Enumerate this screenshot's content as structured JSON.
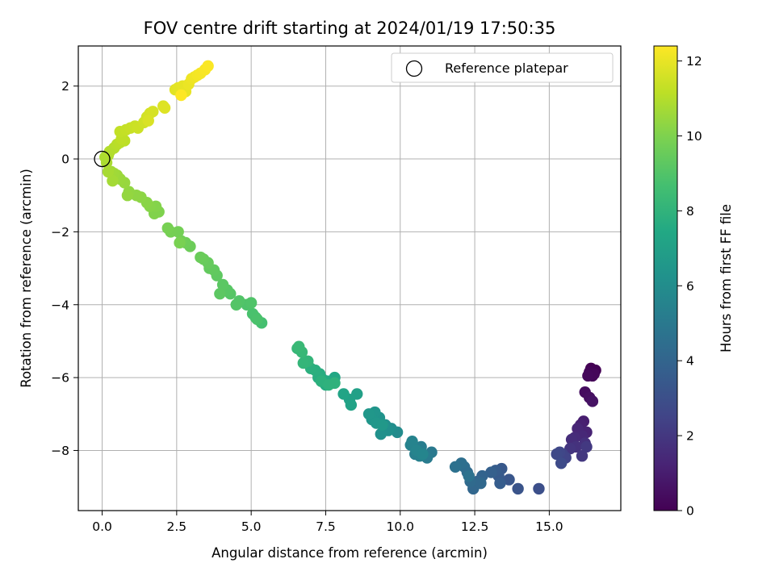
{
  "chart_data": {
    "type": "scatter",
    "title": "FOV centre drift starting at 2024/01/19 17:50:35",
    "xlabel": "Angular distance from reference (arcmin)",
    "ylabel": "Rotation from reference (arcmin)",
    "xlim": [
      -0.8,
      17.4
    ],
    "ylim": [
      -9.65,
      3.1
    ],
    "xticks": [
      "0.0",
      "2.5",
      "5.0",
      "7.5",
      "10.0",
      "12.5",
      "15.0"
    ],
    "xtick_values": [
      0,
      2.5,
      5,
      7.5,
      10,
      12.5,
      15
    ],
    "yticks": [
      "2",
      "0",
      "−2",
      "−4",
      "−6",
      "−8"
    ],
    "ytick_values": [
      2,
      0,
      -2,
      -4,
      -6,
      -8
    ],
    "grid": true,
    "legend": {
      "position": "top-right",
      "entries": [
        "Reference platepar"
      ]
    },
    "reference_point": {
      "x": 0,
      "y": 0
    },
    "colorbar": {
      "label": "Hours from first FF file",
      "range": [
        0,
        12.4
      ],
      "ticks": [
        "0",
        "2",
        "4",
        "6",
        "8",
        "10",
        "12"
      ],
      "tick_values": [
        0,
        2,
        4,
        6,
        8,
        10,
        12
      ],
      "colormap": "viridis"
    },
    "points": [
      [
        16.4,
        -5.75,
        0.0
      ],
      [
        16.55,
        -5.8,
        0.05
      ],
      [
        16.45,
        -5.95,
        0.1
      ],
      [
        16.35,
        -5.85,
        0.15
      ],
      [
        16.5,
        -5.9,
        0.2
      ],
      [
        16.3,
        -5.95,
        0.25
      ],
      [
        16.2,
        -6.4,
        0.4
      ],
      [
        16.35,
        -6.55,
        0.5
      ],
      [
        16.45,
        -6.65,
        0.6
      ],
      [
        16.15,
        -7.2,
        1.0
      ],
      [
        16.05,
        -7.3,
        1.1
      ],
      [
        16.25,
        -7.5,
        1.2
      ],
      [
        15.95,
        -7.4,
        1.3
      ],
      [
        16.1,
        -7.6,
        1.4
      ],
      [
        15.85,
        -7.65,
        1.5
      ],
      [
        15.75,
        -7.7,
        1.6
      ],
      [
        16.2,
        -7.8,
        1.7
      ],
      [
        15.9,
        -7.9,
        1.8
      ],
      [
        15.7,
        -7.95,
        1.9
      ],
      [
        16.1,
        -8.15,
        2.0
      ],
      [
        16.25,
        -7.9,
        2.05
      ],
      [
        15.45,
        -8.1,
        2.4
      ],
      [
        15.55,
        -8.2,
        2.5
      ],
      [
        15.35,
        -8.05,
        2.6
      ],
      [
        15.25,
        -8.1,
        2.7
      ],
      [
        15.4,
        -8.35,
        2.8
      ],
      [
        14.65,
        -9.05,
        3.0
      ],
      [
        13.95,
        -9.05,
        3.2
      ],
      [
        13.65,
        -8.8,
        3.3
      ],
      [
        13.4,
        -8.5,
        3.4
      ],
      [
        13.3,
        -8.7,
        3.5
      ],
      [
        13.2,
        -8.55,
        3.6
      ],
      [
        13.35,
        -8.9,
        3.65
      ],
      [
        13.05,
        -8.6,
        3.75
      ],
      [
        12.75,
        -8.7,
        3.9
      ],
      [
        12.6,
        -8.85,
        4.0
      ],
      [
        12.45,
        -9.05,
        4.1
      ],
      [
        12.7,
        -8.9,
        4.15
      ],
      [
        12.35,
        -8.85,
        4.25
      ],
      [
        12.25,
        -8.6,
        4.3
      ],
      [
        12.15,
        -8.45,
        4.4
      ],
      [
        12.05,
        -8.35,
        4.5
      ],
      [
        11.85,
        -8.45,
        4.6
      ],
      [
        12.3,
        -8.7,
        4.65
      ],
      [
        11.05,
        -8.05,
        5.0
      ],
      [
        10.9,
        -8.2,
        5.1
      ],
      [
        10.7,
        -7.9,
        5.2
      ],
      [
        10.5,
        -8.1,
        5.3
      ],
      [
        10.65,
        -8.15,
        5.35
      ],
      [
        10.35,
        -7.85,
        5.45
      ],
      [
        10.4,
        -7.75,
        5.5
      ],
      [
        10.55,
        -8.0,
        5.55
      ],
      [
        10.75,
        -8.1,
        5.6
      ],
      [
        9.9,
        -7.5,
        5.9
      ],
      [
        9.7,
        -7.4,
        6.0
      ],
      [
        9.5,
        -7.3,
        6.1
      ],
      [
        9.6,
        -7.45,
        6.15
      ],
      [
        9.35,
        -7.55,
        6.2
      ],
      [
        9.3,
        -7.1,
        6.3
      ],
      [
        9.15,
        -6.95,
        6.4
      ],
      [
        9.05,
        -7.15,
        6.45
      ],
      [
        9.2,
        -7.25,
        6.5
      ],
      [
        8.95,
        -7.0,
        6.55
      ],
      [
        9.4,
        -7.3,
        6.6
      ],
      [
        8.55,
        -6.45,
        7.0
      ],
      [
        8.3,
        -6.6,
        7.05
      ],
      [
        8.35,
        -6.75,
        7.1
      ],
      [
        8.1,
        -6.45,
        7.2
      ],
      [
        7.8,
        -6.0,
        7.4
      ],
      [
        7.7,
        -6.15,
        7.45
      ],
      [
        7.55,
        -6.1,
        7.5
      ],
      [
        7.4,
        -6.05,
        7.55
      ],
      [
        7.5,
        -6.2,
        7.6
      ],
      [
        7.3,
        -5.9,
        7.65
      ],
      [
        7.25,
        -6.0,
        7.7
      ],
      [
        7.15,
        -5.8,
        7.75
      ],
      [
        7.0,
        -5.75,
        7.8
      ],
      [
        7.35,
        -6.1,
        7.85
      ],
      [
        7.6,
        -6.2,
        7.9
      ],
      [
        7.8,
        -6.15,
        7.95
      ],
      [
        6.9,
        -5.55,
        8.1
      ],
      [
        6.75,
        -5.6,
        8.15
      ],
      [
        6.55,
        -5.2,
        8.2
      ],
      [
        6.7,
        -5.3,
        8.25
      ],
      [
        6.6,
        -5.15,
        8.3
      ],
      [
        5.35,
        -4.5,
        8.7
      ],
      [
        5.15,
        -4.35,
        8.75
      ],
      [
        5.05,
        -4.25,
        8.8
      ],
      [
        5.2,
        -4.4,
        8.85
      ],
      [
        4.85,
        -4.0,
        8.9
      ],
      [
        5.0,
        -3.95,
        8.95
      ],
      [
        4.6,
        -3.9,
        9.0
      ],
      [
        4.5,
        -4.0,
        9.05
      ],
      [
        4.3,
        -3.7,
        9.1
      ],
      [
        4.2,
        -3.6,
        9.15
      ],
      [
        4.05,
        -3.45,
        9.2
      ],
      [
        3.95,
        -3.7,
        9.25
      ],
      [
        3.85,
        -3.2,
        9.3
      ],
      [
        3.75,
        -3.05,
        9.35
      ],
      [
        3.6,
        -3.0,
        9.4
      ],
      [
        3.55,
        -2.85,
        9.45
      ],
      [
        3.4,
        -2.75,
        9.5
      ],
      [
        3.3,
        -2.7,
        9.55
      ],
      [
        2.95,
        -2.4,
        9.6
      ],
      [
        2.8,
        -2.3,
        9.65
      ],
      [
        2.65,
        -2.25,
        9.7
      ],
      [
        2.55,
        -2.0,
        9.75
      ],
      [
        2.3,
        -2.0,
        9.8
      ],
      [
        2.2,
        -1.9,
        9.85
      ],
      [
        2.6,
        -2.3,
        9.9
      ],
      [
        1.9,
        -1.45,
        10.0
      ],
      [
        1.75,
        -1.5,
        10.05
      ],
      [
        1.8,
        -1.3,
        10.1
      ],
      [
        1.6,
        -1.3,
        10.15
      ],
      [
        1.5,
        -1.2,
        10.2
      ],
      [
        1.3,
        -1.05,
        10.25
      ],
      [
        1.15,
        -1.0,
        10.3
      ],
      [
        0.9,
        -0.9,
        10.35
      ],
      [
        0.85,
        -1.0,
        10.4
      ],
      [
        0.75,
        -0.65,
        10.45
      ],
      [
        0.6,
        -0.55,
        10.5
      ],
      [
        0.5,
        -0.45,
        10.55
      ],
      [
        0.4,
        -0.4,
        10.6
      ],
      [
        0.3,
        -0.35,
        10.65
      ],
      [
        0.35,
        -0.6,
        10.7
      ],
      [
        0.2,
        -0.35,
        10.75
      ],
      [
        0.15,
        -0.1,
        10.8
      ],
      [
        0.1,
        0.05,
        10.85
      ],
      [
        0.2,
        0.1,
        10.9
      ],
      [
        0.25,
        0.2,
        10.95
      ],
      [
        0.4,
        0.3,
        11.0
      ],
      [
        0.5,
        0.4,
        11.05
      ],
      [
        0.6,
        0.45,
        11.1
      ],
      [
        0.75,
        0.5,
        11.15
      ],
      [
        0.65,
        0.55,
        11.2
      ],
      [
        0.6,
        0.75,
        11.25
      ],
      [
        0.8,
        0.8,
        11.3
      ],
      [
        0.95,
        0.85,
        11.35
      ],
      [
        1.1,
        0.9,
        11.4
      ],
      [
        1.2,
        0.85,
        11.45
      ],
      [
        1.4,
        1.0,
        11.5
      ],
      [
        1.5,
        1.15,
        11.55
      ],
      [
        1.6,
        1.25,
        11.6
      ],
      [
        1.7,
        1.3,
        11.65
      ],
      [
        1.55,
        1.05,
        11.7
      ],
      [
        2.05,
        1.45,
        11.75
      ],
      [
        2.1,
        1.4,
        11.8
      ],
      [
        2.45,
        1.9,
        11.85
      ],
      [
        2.55,
        1.95,
        11.9
      ],
      [
        2.7,
        2.0,
        11.95
      ],
      [
        2.8,
        1.85,
        12.0
      ],
      [
        2.9,
        2.05,
        12.05
      ],
      [
        3.0,
        2.2,
        12.1
      ],
      [
        3.1,
        2.25,
        12.15
      ],
      [
        3.2,
        2.3,
        12.2
      ],
      [
        3.3,
        2.35,
        12.25
      ],
      [
        3.45,
        2.45,
        12.3
      ],
      [
        3.55,
        2.55,
        12.35
      ],
      [
        2.65,
        1.75,
        12.4
      ]
    ]
  }
}
